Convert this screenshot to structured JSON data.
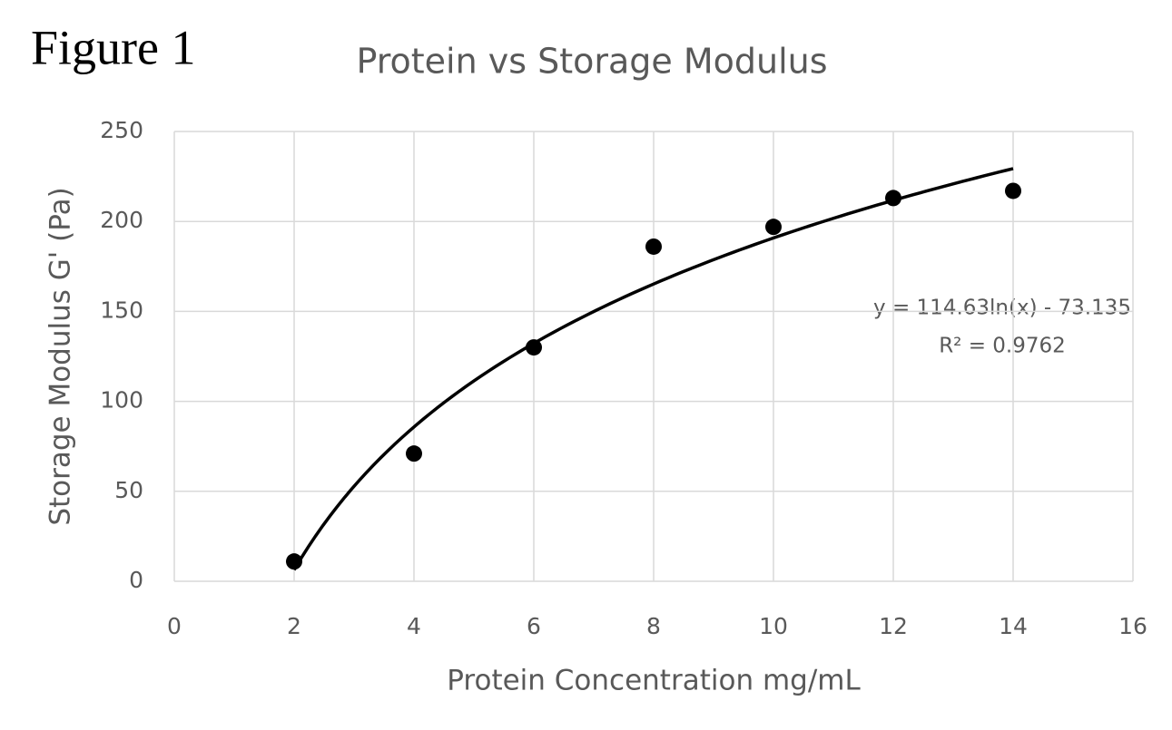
{
  "chart_data": {
    "type": "scatter",
    "figure_label": "Figure 1",
    "title": "Protein vs Storage Modulus",
    "x_label": "Protein Concentration mg/mL",
    "y_label": "Storage Modulus G' (Pa)",
    "x": [
      2,
      4,
      6,
      8,
      10,
      12,
      14
    ],
    "values": [
      11,
      71,
      130,
      186,
      197,
      213,
      217
    ],
    "color": "#000000",
    "xlim": [
      0,
      16
    ],
    "xticks": [
      0,
      2,
      4,
      6,
      8,
      10,
      12,
      14,
      16
    ],
    "ylim": [
      0,
      250
    ],
    "yticks": [
      0,
      50,
      100,
      150,
      200,
      250
    ],
    "grid": true,
    "trendline": {
      "type": "log",
      "a": 114.63,
      "b": -73.135,
      "xrange": [
        2,
        14
      ],
      "color": "#000000"
    },
    "annotations": [
      "y = 114.63ln(x) - 73.135",
      "R² = 0.9762"
    ]
  }
}
